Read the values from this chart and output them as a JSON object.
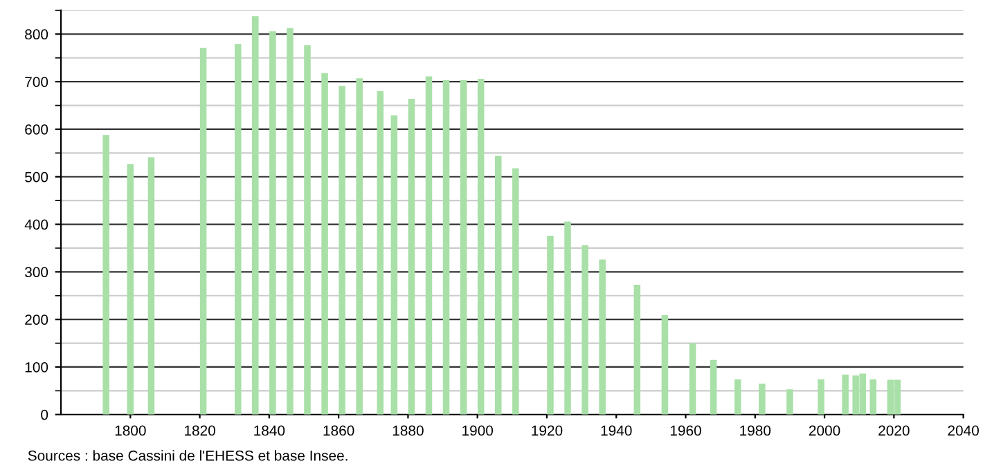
{
  "chart_data": {
    "type": "bar",
    "x": [
      1793,
      1800,
      1806,
      1821,
      1831,
      1836,
      1841,
      1846,
      1851,
      1856,
      1861,
      1866,
      1872,
      1876,
      1881,
      1886,
      1891,
      1896,
      1901,
      1906,
      1911,
      1921,
      1926,
      1931,
      1936,
      1946,
      1954,
      1962,
      1968,
      1975,
      1982,
      1990,
      1999,
      2006,
      2009,
      2011,
      2014,
      2019,
      2021
    ],
    "values": [
      588,
      527,
      541,
      771,
      779,
      838,
      806,
      813,
      777,
      718,
      691,
      707,
      680,
      629,
      664,
      711,
      703,
      703,
      706,
      544,
      518,
      376,
      406,
      356,
      326,
      273,
      209,
      150,
      115,
      74,
      65,
      53,
      74,
      84,
      82,
      86,
      74,
      73,
      73
    ],
    "color": "#a8e0a8",
    "xlim": [
      1780,
      2040
    ],
    "xticks": [
      1800,
      1820,
      1840,
      1860,
      1880,
      1900,
      1920,
      1940,
      1960,
      1980,
      2000,
      2020,
      2040
    ],
    "ylim": [
      0,
      850
    ],
    "yticks": [
      0,
      100,
      200,
      300,
      400,
      500,
      600,
      700,
      800
    ],
    "grid": "y",
    "annotations": [
      "Sources : base Cassini de l'EHESS et base Insee."
    ]
  }
}
